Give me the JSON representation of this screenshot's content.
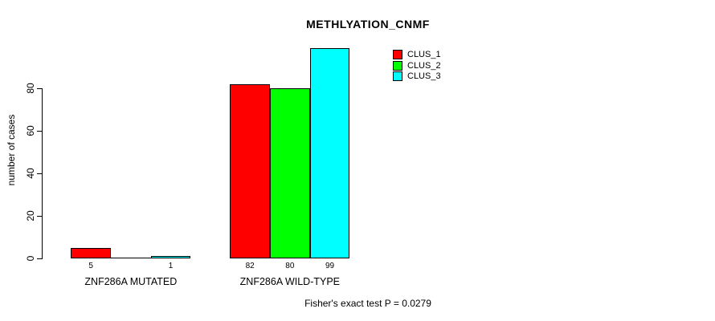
{
  "chart_data": {
    "type": "bar",
    "title": "METHLYATION_CNMF",
    "ylabel": "number of cases",
    "footer": "Fisher's exact test P = 0.0279",
    "ylim": [
      0,
      100
    ],
    "yticks": [
      0,
      20,
      40,
      60,
      80
    ],
    "grid": false,
    "legend_position": "top-right",
    "categories": [
      "ZNF286A MUTATED",
      "ZNF286A WILD-TYPE"
    ],
    "series": [
      {
        "name": "CLUS_1",
        "color": "#ff0000",
        "values": [
          5,
          82
        ]
      },
      {
        "name": "CLUS_2",
        "color": "#00ff00",
        "values": [
          0,
          80
        ]
      },
      {
        "name": "CLUS_3",
        "color": "#00ffff",
        "values": [
          1,
          99
        ]
      }
    ],
    "bar_value_labels": [
      [
        "5",
        "",
        "1"
      ],
      [
        "82",
        "80",
        "99"
      ]
    ]
  }
}
